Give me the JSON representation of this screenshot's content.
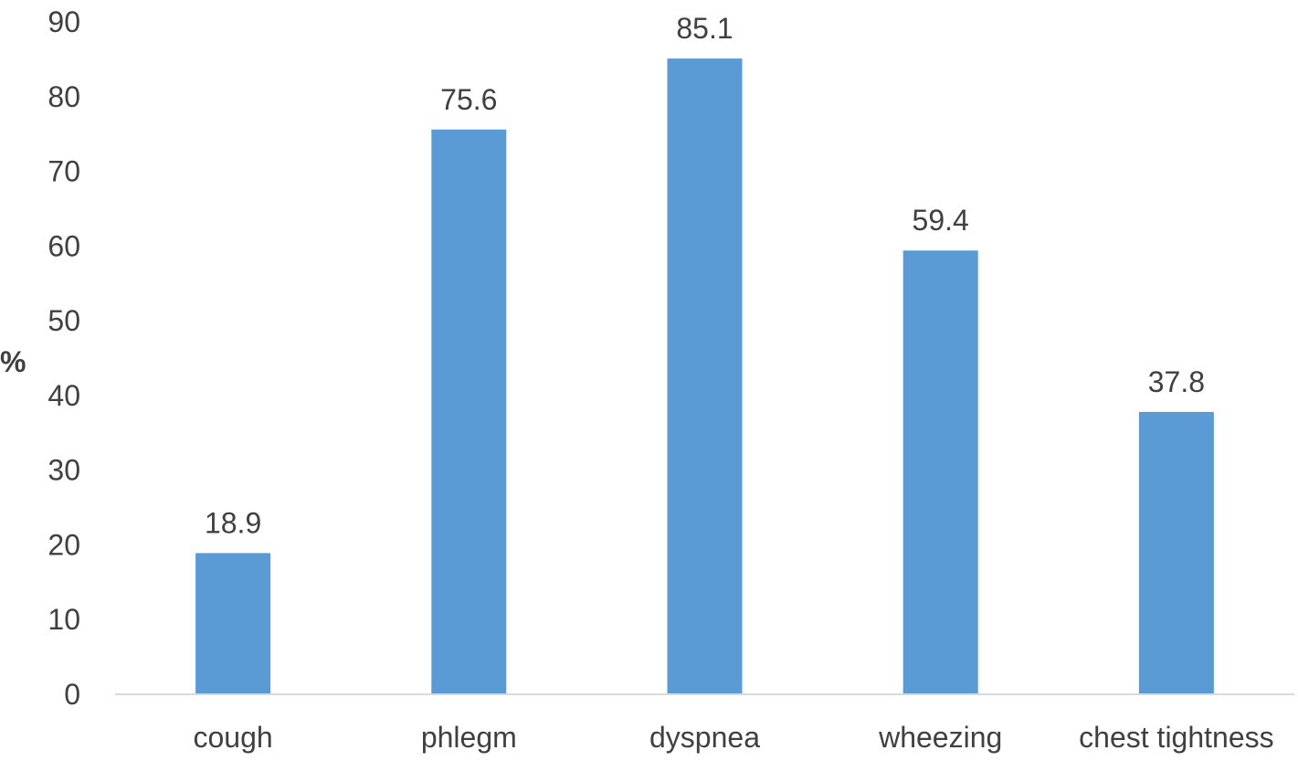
{
  "chart_data": {
    "type": "bar",
    "title": "",
    "xlabel": "",
    "ylabel": "%",
    "categories": [
      "cough",
      "phlegm",
      "dyspnea",
      "wheezing",
      "chest tightness"
    ],
    "values": [
      18.9,
      75.6,
      85.1,
      59.4,
      37.8
    ],
    "value_labels": [
      "18.9",
      "75.6",
      "85.1",
      "59.4",
      "37.8"
    ],
    "ylim": [
      0,
      90
    ],
    "yticks": [
      0,
      10,
      20,
      30,
      40,
      50,
      60,
      70,
      80,
      90
    ],
    "ytick_labels": [
      "0",
      "10",
      "20",
      "30",
      "40",
      "50",
      "60",
      "70",
      "80",
      "90"
    ],
    "grid": false,
    "legend": "none",
    "colors": {
      "bar": "#5b9bd5",
      "axis": "#d9d9d9",
      "text": "#404040"
    }
  }
}
